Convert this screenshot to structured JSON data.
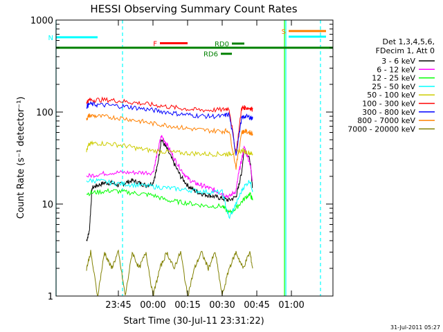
{
  "colors": {
    "background": "#ffffff",
    "axis": "#000000",
    "att_line": "#008000",
    "att_marker": "#00ffff"
  },
  "chart_data": {
    "type": "line",
    "title": "HESSI Observing Summary Count Rates",
    "xlabel": "Start Time (30-Jul-11 23:31:22)",
    "ylabel": "Count Rate (s⁻¹ detector⁻¹)",
    "ylog": true,
    "xlim": [
      23.3,
      25.3
    ],
    "ylim": [
      1,
      1000
    ],
    "xticks": [
      {
        "t": 23.75,
        "label": "23:45"
      },
      {
        "t": 24.0,
        "label": "00:00"
      },
      {
        "t": 24.25,
        "label": "00:15"
      },
      {
        "t": 24.5,
        "label": "00:30"
      },
      {
        "t": 24.75,
        "label": "00:45"
      },
      {
        "t": 25.0,
        "label": "01:00"
      }
    ],
    "yticks": [
      {
        "v": 1,
        "label": "1"
      },
      {
        "v": 10,
        "label": "10"
      },
      {
        "v": 100,
        "label": "100"
      },
      {
        "v": 1000,
        "label": "1000"
      }
    ],
    "legend": {
      "header": [
        "Det 1,3,4,5,6,",
        "FDecim 1, Att 0"
      ],
      "placement": "right"
    },
    "timestamp": "31-Jul-2011 05:27",
    "flags": [
      {
        "label": "F",
        "color": "#ff0000",
        "t0": 24.05,
        "t1": 24.25,
        "level": 560
      },
      {
        "label": "RD0",
        "color": "#008000",
        "t0": 24.57,
        "t1": 24.66,
        "level": 555
      },
      {
        "label": "RD6",
        "color": "#008000",
        "t0": 24.49,
        "t1": 24.57,
        "level": 430
      },
      {
        "label": "N",
        "color": "#00ffff",
        "t0": 23.3,
        "t1": 23.6,
        "level": 650
      },
      {
        "label": "S",
        "color": "#ff8000",
        "t0": 24.98,
        "t1": 25.25,
        "level": 760
      }
    ],
    "att_line_level": 500,
    "cyan_top_segments": [
      {
        "t0": 24.98,
        "t1": 25.25,
        "level": 660
      }
    ],
    "vlines": [
      {
        "t": 23.3,
        "color": "#00ffff",
        "dashed": false
      },
      {
        "t": 23.78,
        "color": "#00ffff",
        "dashed": true
      },
      {
        "t": 24.95,
        "color": "#00ff00",
        "dashed": false
      },
      {
        "t": 24.96,
        "color": "#00ffff",
        "dashed": false
      },
      {
        "t": 25.21,
        "color": "#00ffff",
        "dashed": true
      }
    ],
    "series": [
      {
        "name": "3 - 6 keV",
        "color": "#000000",
        "t": [
          23.52,
          23.54,
          23.56,
          23.6,
          23.65,
          23.7,
          23.75,
          23.8,
          23.85,
          23.9,
          23.95,
          24.0,
          24.03,
          24.06,
          24.1,
          24.15,
          24.2,
          24.25,
          24.3,
          24.35,
          24.4,
          24.45,
          24.5,
          24.55,
          24.6,
          24.62,
          24.64,
          24.66,
          24.7,
          24.72
        ],
        "v": [
          4,
          5,
          15,
          16,
          17,
          17,
          16,
          17,
          18,
          17,
          16,
          17,
          25,
          50,
          40,
          28,
          20,
          16,
          14,
          13,
          12.5,
          12,
          11.5,
          11,
          12,
          16,
          22,
          40,
          30,
          15
        ]
      },
      {
        "name": "6 - 12 keV",
        "color": "#ff00ff",
        "t": [
          23.52,
          23.6,
          23.7,
          23.8,
          23.9,
          24.0,
          24.03,
          24.06,
          24.1,
          24.15,
          24.2,
          24.25,
          24.3,
          24.35,
          24.4,
          24.45,
          24.5,
          24.55,
          24.6,
          24.62,
          24.64,
          24.66,
          24.7,
          24.72
        ],
        "v": [
          20,
          21,
          22,
          22,
          22,
          22,
          35,
          55,
          45,
          32,
          24,
          19,
          17,
          16,
          15,
          14,
          13,
          12,
          14,
          22,
          30,
          42,
          28,
          18
        ]
      },
      {
        "name": "12 - 25 keV",
        "color": "#00ff00",
        "t": [
          23.52,
          23.6,
          23.7,
          23.8,
          23.9,
          24.0,
          24.1,
          24.2,
          24.3,
          24.4,
          24.5,
          24.55,
          24.6,
          24.65,
          24.7,
          24.72
        ],
        "v": [
          13,
          13.5,
          14,
          13.5,
          13,
          12.5,
          11,
          10.5,
          10,
          9.5,
          9.5,
          8,
          9,
          11,
          13,
          11
        ]
      },
      {
        "name": "25 - 50 keV",
        "color": "#00ffff",
        "t": [
          23.52,
          23.6,
          23.7,
          23.8,
          23.9,
          24.0,
          24.1,
          24.2,
          24.3,
          24.4,
          24.5,
          24.55,
          24.6,
          24.65,
          24.7,
          24.72
        ],
        "v": [
          18,
          18,
          17,
          16.5,
          16,
          15.5,
          15,
          14.5,
          14,
          13.5,
          13.5,
          7,
          10,
          15,
          18,
          14
        ]
      },
      {
        "name": "50 - 100 keV",
        "color": "#cccc00",
        "t": [
          23.52,
          23.54,
          23.6,
          23.7,
          23.8,
          23.9,
          24.0,
          24.1,
          24.2,
          24.3,
          24.4,
          24.5,
          24.55,
          24.6,
          24.65,
          24.7,
          24.72
        ],
        "v": [
          38,
          45,
          46,
          45,
          43,
          40,
          38,
          37,
          36,
          35.5,
          35,
          35,
          35,
          37,
          38,
          36,
          35
        ]
      },
      {
        "name": "100 - 300 keV",
        "color": "#ff0000",
        "t": [
          23.52,
          23.54,
          23.6,
          23.7,
          23.8,
          23.9,
          24.0,
          24.1,
          24.2,
          24.3,
          24.4,
          24.5,
          24.55,
          24.6,
          24.64,
          24.66,
          24.7,
          24.72
        ],
        "v": [
          128,
          135,
          136,
          135,
          130,
          125,
          120,
          115,
          110,
          106,
          105,
          106,
          110,
          35,
          110,
          112,
          110,
          108
        ]
      },
      {
        "name": "300 - 800 keV",
        "color": "#0000ff",
        "t": [
          23.52,
          23.54,
          23.6,
          23.7,
          23.8,
          23.9,
          24.0,
          24.1,
          24.2,
          24.3,
          24.4,
          24.5,
          24.55,
          24.6,
          24.64,
          24.66,
          24.7,
          24.72
        ],
        "v": [
          115,
          122,
          120,
          118,
          115,
          110,
          105,
          100,
          95,
          92,
          90,
          90,
          95,
          35,
          85,
          90,
          88,
          85
        ]
      },
      {
        "name": "800 - 7000 keV",
        "color": "#ff8000",
        "t": [
          23.52,
          23.54,
          23.6,
          23.7,
          23.8,
          23.9,
          24.0,
          24.1,
          24.2,
          24.3,
          24.4,
          24.5,
          24.55,
          24.6,
          24.64,
          24.66,
          24.7,
          24.72
        ],
        "v": [
          85,
          92,
          90,
          88,
          85,
          80,
          75,
          72,
          68,
          65,
          63,
          62,
          63,
          25,
          60,
          62,
          60,
          58
        ]
      },
      {
        "name": "7000 - 20000 keV",
        "color": "#808000",
        "t": [
          23.52,
          23.55,
          23.6,
          23.65,
          23.7,
          23.75,
          23.8,
          23.85,
          23.9,
          23.95,
          24.0,
          24.05,
          24.1,
          24.15,
          24.2,
          24.25,
          24.3,
          24.35,
          24.4,
          24.45,
          24.5,
          24.55,
          24.6,
          24.65,
          24.7,
          24.72
        ],
        "v": [
          2,
          3,
          1,
          3,
          2,
          3,
          1,
          3,
          2,
          3,
          1,
          2,
          3,
          2,
          3,
          1,
          2,
          3,
          2,
          3,
          1,
          2,
          3,
          2,
          3,
          2
        ]
      }
    ]
  }
}
